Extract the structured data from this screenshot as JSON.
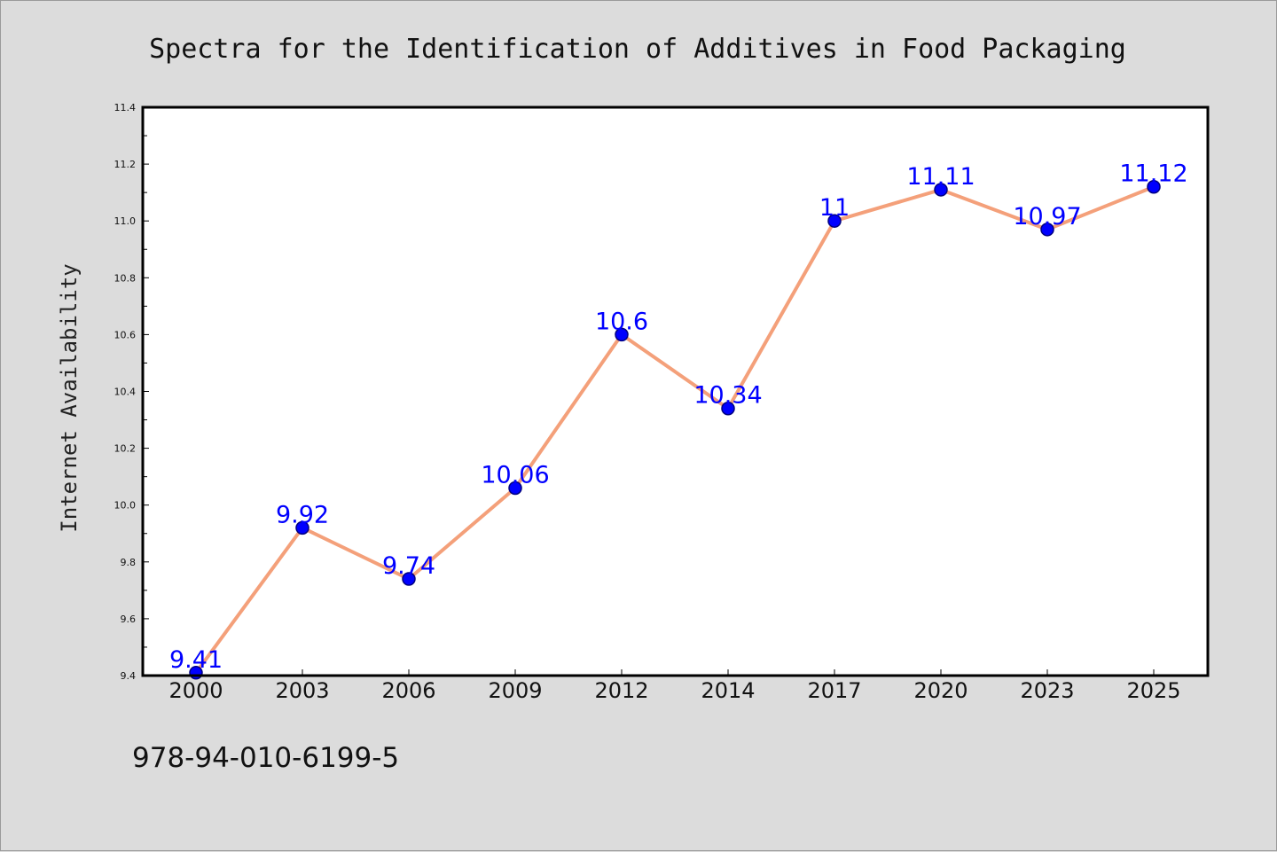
{
  "chart_data": {
    "type": "line",
    "title": "Spectra for the Identification of Additives in Food Packaging",
    "ylabel": "Internet Availability",
    "xlabel": "",
    "categories": [
      "2000",
      "2003",
      "2006",
      "2009",
      "2012",
      "2014",
      "2017",
      "2020",
      "2023",
      "2025"
    ],
    "series": [
      {
        "values": [
          9.41,
          9.92,
          9.74,
          10.06,
          10.6,
          10.34,
          11,
          11.11,
          10.97,
          11.12
        ],
        "data_labels": [
          "9.41",
          "9.92",
          "9.74",
          "10.06",
          "10.6",
          "10.34",
          "11",
          "11.11",
          "10.97",
          "11.12"
        ]
      }
    ],
    "ylim": [
      9.4,
      11.4
    ],
    "yticks": [
      "9.4",
      "9.6",
      "9.8",
      "10.0",
      "10.2",
      "10.4",
      "10.6",
      "10.8",
      "11.0",
      "11.2",
      "11.4"
    ],
    "grid": false,
    "colors": {
      "line": "#f4a07a",
      "marker": "#0000ff",
      "marker_edge": "#000080",
      "data_label": "#0000ff",
      "plot_background": "#ffffff",
      "figure_background": "#dcdcdc"
    }
  },
  "footer": {
    "isbn": "978-94-010-6199-5"
  }
}
